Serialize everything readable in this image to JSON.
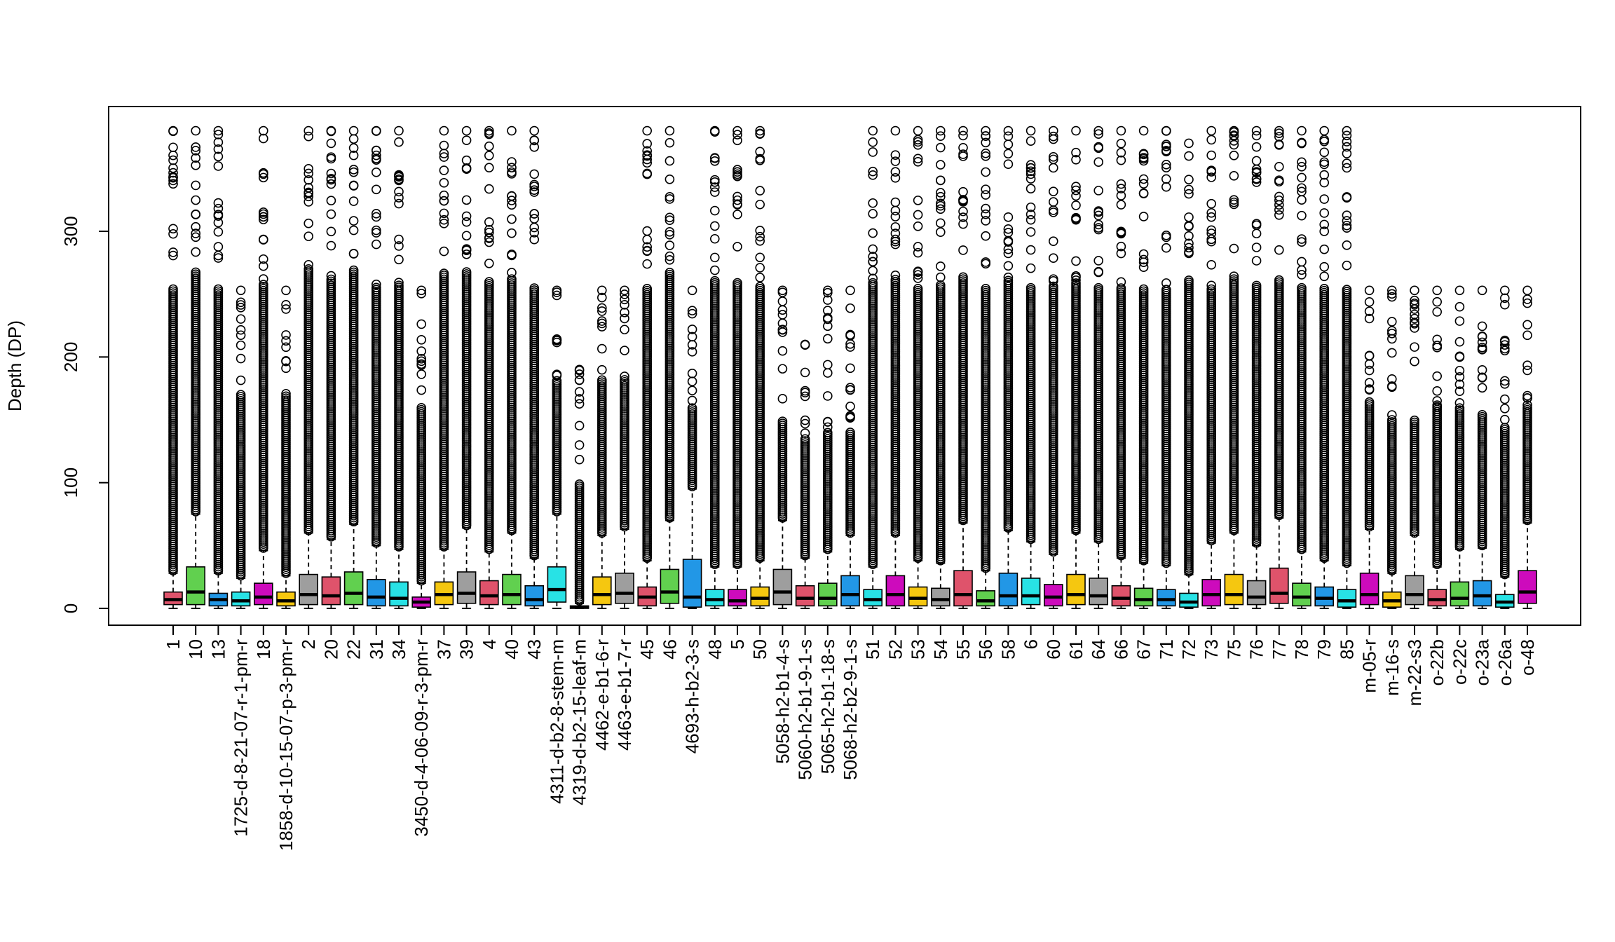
{
  "chart_data": {
    "type": "boxplot",
    "title": "",
    "xlabel": "",
    "ylabel": "Depth (DP)",
    "ylim": [
      -15,
      395
    ],
    "yticks": [
      0,
      100,
      200,
      300
    ],
    "ytick_labels": [
      "0",
      "100",
      "200",
      "300"
    ],
    "grid": false,
    "legend": "none",
    "palette": [
      "#DF536B",
      "#61D04F",
      "#2297E6",
      "#28E2E5",
      "#CD0BBC",
      "#F5C710",
      "#9E9E9E"
    ],
    "categories": [
      "1",
      "10",
      "13",
      "1725-d-8-21-07-r-1-pm-r",
      "18",
      "1858-d-10-15-07-p-3-pm-r",
      "2",
      "20",
      "22",
      "31",
      "34",
      "3450-d-4-06-09-r-3-pm-r",
      "37",
      "39",
      "4",
      "40",
      "43",
      "4311-d-b2-8-stem-m",
      "4319-d-b2-15-leaf-m",
      "4462-e-b1-6-r",
      "4463-e-b1-7-r",
      "45",
      "46",
      "4693-h-b2-3-s",
      "48",
      "5",
      "50",
      "5058-h2-b1-4-s",
      "5060-h2-b1-9-1-s",
      "5065-h2-b1-18-s",
      "5068-h2-b2-9-1-s",
      "51",
      "52",
      "53",
      "54",
      "55",
      "56",
      "58",
      "6",
      "60",
      "61",
      "64",
      "66",
      "67",
      "71",
      "72",
      "73",
      "75",
      "76",
      "77",
      "78",
      "79",
      "85",
      "m-05-r",
      "m-16-s",
      "m-22-s3",
      "o-22b",
      "o-22c",
      "o-23a",
      "o-26a",
      "o-48"
    ],
    "q1": [
      3,
      3,
      2,
      2,
      3,
      2,
      3,
      3,
      3,
      2,
      2,
      1,
      3,
      4,
      3,
      3,
      2,
      5,
      0,
      3,
      4,
      2,
      4,
      1,
      2,
      2,
      2,
      3,
      2,
      2,
      2,
      2,
      2,
      2,
      2,
      2,
      2,
      2,
      3,
      2,
      3,
      3,
      2,
      2,
      2,
      1,
      2,
      3,
      3,
      4,
      2,
      2,
      1,
      3,
      1,
      3,
      2,
      2,
      2,
      1,
      4
    ],
    "median": [
      7,
      13,
      7,
      6,
      9,
      6,
      11,
      10,
      12,
      9,
      8,
      5,
      11,
      12,
      10,
      11,
      7,
      15,
      1,
      11,
      12,
      9,
      13,
      9,
      7,
      6,
      8,
      13,
      8,
      8,
      11,
      7,
      11,
      8,
      7,
      11,
      6,
      10,
      10,
      9,
      11,
      10,
      8,
      7,
      7,
      5,
      11,
      11,
      9,
      12,
      9,
      8,
      6,
      11,
      6,
      11,
      7,
      8,
      10,
      5,
      13
    ],
    "q3": [
      13,
      33,
      12,
      13,
      20,
      13,
      27,
      25,
      29,
      23,
      21,
      9,
      21,
      29,
      22,
      27,
      18,
      33,
      2,
      25,
      28,
      17,
      31,
      39,
      15,
      15,
      17,
      31,
      18,
      20,
      26,
      15,
      26,
      17,
      16,
      30,
      14,
      28,
      24,
      19,
      27,
      24,
      18,
      16,
      15,
      12,
      23,
      27,
      22,
      32,
      20,
      17,
      15,
      28,
      13,
      26,
      15,
      21,
      22,
      11,
      30
    ],
    "whisker_low": [
      0,
      0,
      0,
      0,
      0,
      0,
      0,
      0,
      0,
      0,
      0,
      0,
      0,
      0,
      0,
      0,
      0,
      0,
      0,
      0,
      0,
      0,
      0,
      0,
      0,
      0,
      0,
      0,
      0,
      0,
      0,
      0,
      0,
      0,
      0,
      0,
      0,
      0,
      0,
      0,
      0,
      0,
      0,
      0,
      0,
      0,
      0,
      0,
      0,
      0,
      0,
      0,
      0,
      0,
      0,
      0,
      0,
      0,
      0,
      0,
      0
    ],
    "whisker_high": [
      28,
      75,
      28,
      24,
      46,
      26,
      60,
      55,
      67,
      50,
      47,
      20,
      47,
      64,
      45,
      60,
      40,
      75,
      4,
      58,
      63,
      38,
      70,
      95,
      33,
      33,
      38,
      70,
      40,
      45,
      58,
      33,
      58,
      38,
      36,
      68,
      30,
      62,
      53,
      43,
      60,
      53,
      40,
      36,
      34,
      27,
      52,
      60,
      50,
      72,
      45,
      38,
      34,
      63,
      28,
      58,
      33,
      47,
      48,
      25,
      68
    ],
    "outlier_max": [
      380,
      380,
      380,
      253,
      380,
      253,
      380,
      380,
      380,
      380,
      380,
      253,
      380,
      380,
      380,
      380,
      380,
      253,
      190,
      253,
      253,
      380,
      380,
      253,
      380,
      380,
      380,
      253,
      210,
      253,
      253,
      380,
      380,
      380,
      380,
      380,
      380,
      380,
      380,
      380,
      380,
      380,
      380,
      380,
      380,
      370,
      380,
      380,
      380,
      380,
      380,
      380,
      380,
      253,
      253,
      253,
      253,
      253,
      253,
      253,
      253
    ],
    "dense_max": [
      255,
      268,
      255,
      170,
      258,
      170,
      270,
      262,
      270,
      256,
      258,
      160,
      265,
      268,
      260,
      262,
      255,
      182,
      100,
      182,
      182,
      255,
      268,
      160,
      262,
      260,
      255,
      150,
      136,
      140,
      140,
      260,
      262,
      255,
      258,
      265,
      255,
      262,
      255,
      255,
      260,
      256,
      255,
      255,
      255,
      262,
      255,
      262,
      258,
      262,
      255,
      255,
      255,
      165,
      150,
      150,
      160,
      160,
      155,
      145,
      160
    ]
  }
}
